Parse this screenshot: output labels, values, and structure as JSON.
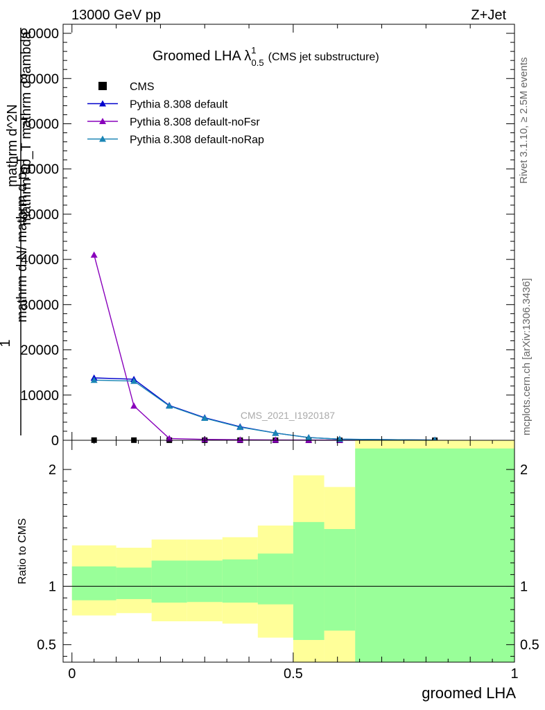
{
  "header": {
    "left": "13000 GeV pp",
    "right": "Z+Jet"
  },
  "side_labels": {
    "rivet": "Rivet 3.1.10, ≥ 2.5M events",
    "mcplots": "mcplots.cern.ch [arXiv:1306.3436]"
  },
  "chart_data": [
    {
      "type": "line",
      "title": "Groomed LHA",
      "title_symbol": "λ",
      "title_sup": "1",
      "title_sub": "0.5",
      "subtitle": "(CMS jet substructure)",
      "ylabel_lines": [
        "1",
        "mathrm d N/ mathrm d p_T",
        "mathrm d^2N",
        "mathrm dp_T mathrm d lambda"
      ],
      "watermark": "CMS_2021_I1920187",
      "xlim": [
        -0.02,
        1.0
      ],
      "ylim": [
        0,
        92000
      ],
      "yticks": [
        0,
        10000,
        20000,
        30000,
        40000,
        50000,
        60000,
        70000,
        80000,
        90000
      ],
      "ytick_labels": [
        "0",
        "10000",
        "20000",
        "30000",
        "40000",
        "50000",
        "60000",
        "70000",
        "80000",
        "90000"
      ],
      "legend_position": "top-left",
      "x": [
        0.05,
        0.14,
        0.22,
        0.3,
        0.38,
        0.46,
        0.535,
        0.605,
        0.82
      ],
      "series": [
        {
          "name": "CMS",
          "marker": "square",
          "color": "#000000",
          "values": [
            35,
            30,
            22,
            15,
            10,
            7,
            4,
            2,
            0.5
          ]
        },
        {
          "name": "Pythia 8.308 default",
          "marker": "triangle",
          "color": "#0000cc",
          "values": [
            13800,
            13500,
            7700,
            5000,
            3000,
            1600,
            600,
            250,
            50
          ]
        },
        {
          "name": "Pythia 8.308 default-noFsr",
          "marker": "triangle",
          "color": "#8800bb",
          "values": [
            41000,
            7600,
            400,
            200,
            120,
            70,
            40,
            20,
            5
          ]
        },
        {
          "name": "Pythia 8.308 default-noRap",
          "marker": "triangle",
          "color": "#1a85b5",
          "values": [
            13300,
            13100,
            7600,
            4900,
            2900,
            1600,
            600,
            250,
            50
          ]
        }
      ]
    },
    {
      "type": "area",
      "ylabel": "Ratio to CMS",
      "xlabel": "groomed LHA",
      "xlim": [
        -0.02,
        1.0
      ],
      "ylim": [
        0.35,
        2.25
      ],
      "yticks": [
        0.5,
        1,
        2
      ],
      "ytick_labels": [
        "0.5",
        "1",
        "2"
      ],
      "xticks": [
        0,
        0.5,
        1
      ],
      "xtick_labels": [
        "0",
        "0.5",
        "1"
      ],
      "bands": {
        "bin_edges": [
          0.0,
          0.1,
          0.18,
          0.26,
          0.34,
          0.42,
          0.5,
          0.57,
          0.64,
          1.0
        ],
        "inner_color": "#99ff99",
        "outer_color": "#ffff99",
        "inner_low": [
          0.88,
          0.89,
          0.86,
          0.865,
          0.86,
          0.845,
          0.54,
          0.62,
          0.35
        ],
        "inner_high": [
          1.17,
          1.16,
          1.22,
          1.22,
          1.23,
          1.28,
          1.55,
          1.49,
          2.18
        ],
        "outer_low": [
          0.75,
          0.77,
          0.7,
          0.7,
          0.68,
          0.56,
          0.35,
          0.35,
          0.35
        ],
        "outer_high": [
          1.35,
          1.33,
          1.4,
          1.4,
          1.42,
          1.52,
          1.95,
          1.85,
          2.25
        ]
      },
      "reference_line": 1
    }
  ]
}
